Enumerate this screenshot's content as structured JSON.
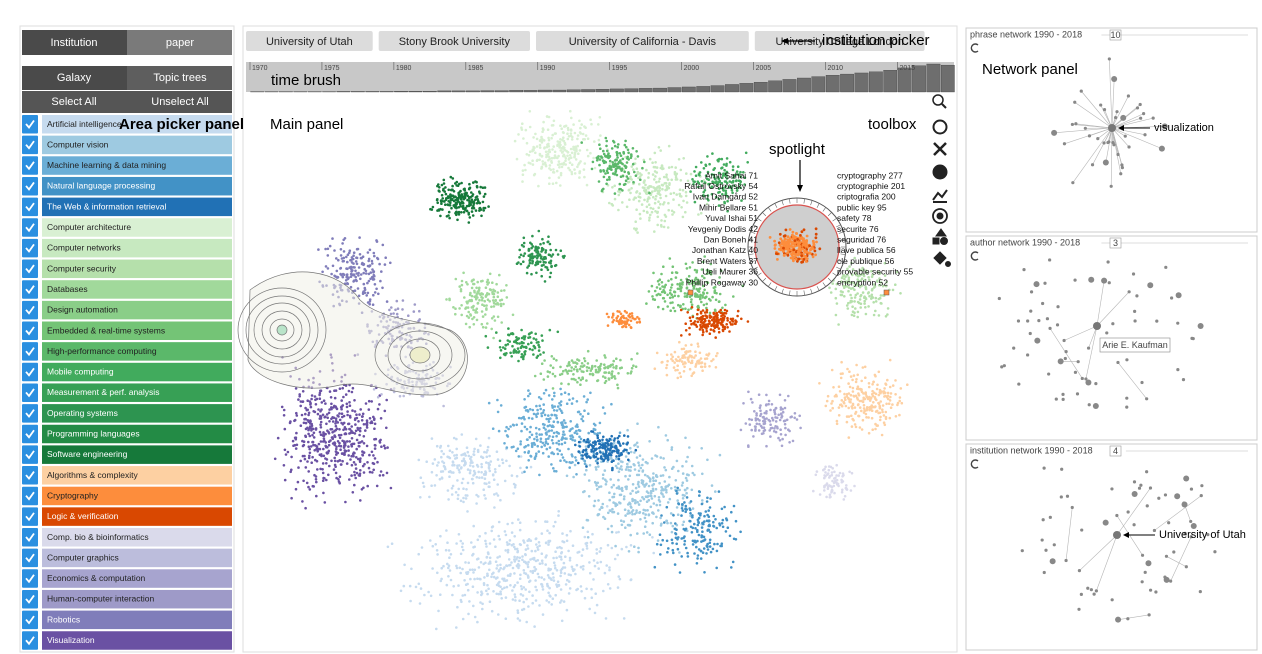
{
  "mode_toggle": [
    "Institution",
    "paper"
  ],
  "view_toggle": [
    "Galaxy",
    "Topic trees"
  ],
  "select_buttons": [
    "Select All",
    "Unselect All"
  ],
  "areas": [
    {
      "name": "Artificial intelligence",
      "color": "#c6dbef"
    },
    {
      "name": "Computer vision",
      "color": "#9ecae1"
    },
    {
      "name": "Machine learning & data mining",
      "color": "#6baed6"
    },
    {
      "name": "Natural language processing",
      "color": "#4292c6"
    },
    {
      "name": "The Web & information retrieval",
      "color": "#2171b5"
    },
    {
      "name": "Computer architecture",
      "color": "#d9f0d3"
    },
    {
      "name": "Computer networks",
      "color": "#c7e9c0"
    },
    {
      "name": "Computer security",
      "color": "#b5e0ab"
    },
    {
      "name": "Databases",
      "color": "#a1d99b"
    },
    {
      "name": "Design automation",
      "color": "#8ace88"
    },
    {
      "name": "Embedded & real-time systems",
      "color": "#74c476"
    },
    {
      "name": "High-performance computing",
      "color": "#5bb86a"
    },
    {
      "name": "Mobile computing",
      "color": "#41ab5d"
    },
    {
      "name": "Measurement & perf. analysis",
      "color": "#37a055"
    },
    {
      "name": "Operating systems",
      "color": "#2d9450"
    },
    {
      "name": "Programming languages",
      "color": "#238b45"
    },
    {
      "name": "Software engineering",
      "color": "#16793a"
    },
    {
      "name": "Algorithms & complexity",
      "color": "#fdd0a2"
    },
    {
      "name": "Cryptography",
      "color": "#fd8d3c"
    },
    {
      "name": "Logic & verification",
      "color": "#d94801"
    },
    {
      "name": "Comp. bio & bioinformatics",
      "color": "#dadaeb"
    },
    {
      "name": "Computer graphics",
      "color": "#bcbddc"
    },
    {
      "name": "Economics & computation",
      "color": "#a7a4cf"
    },
    {
      "name": "Human-computer interaction",
      "color": "#9e9ac8"
    },
    {
      "name": "Robotics",
      "color": "#807dba"
    },
    {
      "name": "Visualization",
      "color": "#6a51a3"
    }
  ],
  "annotations": {
    "area_picker": "Area picker panel",
    "main_panel": "Main panel",
    "toolbox": "toolbox",
    "spotlight": "spotlight",
    "time_brush": "time brush",
    "institution_picker": "institution picker",
    "network_panel": "Network panel"
  },
  "institution_picker": [
    "University of Utah",
    "Stony Brook University",
    "University of California - Davis",
    "University College London"
  ],
  "time_brush": {
    "xlim": [
      1970,
      2019
    ],
    "year_labels": [
      1970,
      1975,
      1980,
      1985,
      1990,
      1995,
      2000,
      2005,
      2010,
      2015
    ],
    "counts": [
      1,
      1,
      1,
      1,
      1,
      1,
      2,
      2,
      2,
      2,
      3,
      3,
      3,
      4,
      4,
      4,
      5,
      5,
      6,
      6,
      7,
      7,
      8,
      9,
      10,
      11,
      12,
      13,
      14,
      16,
      18,
      20,
      23,
      27,
      31,
      35,
      40,
      45,
      50,
      55,
      60,
      64,
      68,
      72,
      78,
      86,
      94,
      100,
      96
    ]
  },
  "spotlight": {
    "authors": [
      "Amit Sahai 71",
      "Rafail Ostrovsky 54",
      "Ivan Damgård 52",
      "Mihir Bellare 51",
      "Yuval Ishai 51",
      "Yevgeniy Dodis 42",
      "Dan Boneh 41",
      "Jonathan Katz 40",
      "Brent Waters 37",
      "Ueli Maurer 36",
      "Phillip Rogaway 30"
    ],
    "phrases": [
      "cryptography 277",
      "cryptographie 201",
      "criptografia 200",
      "public key 95",
      "safety 78",
      "securite 76",
      "seguridad 76",
      "llave publica 56",
      "cle publique 56",
      "provable security 55",
      "encryption 52"
    ]
  },
  "networks": [
    {
      "title": "phrase network 1990 - 2018",
      "count": 10,
      "label": "visualization"
    },
    {
      "title": "author network 1990 - 2018",
      "count": 3,
      "label": "Arie E. Kaufman"
    },
    {
      "title": "institution network 1990 - 2018",
      "count": 4,
      "label": "University of Utah"
    }
  ]
}
